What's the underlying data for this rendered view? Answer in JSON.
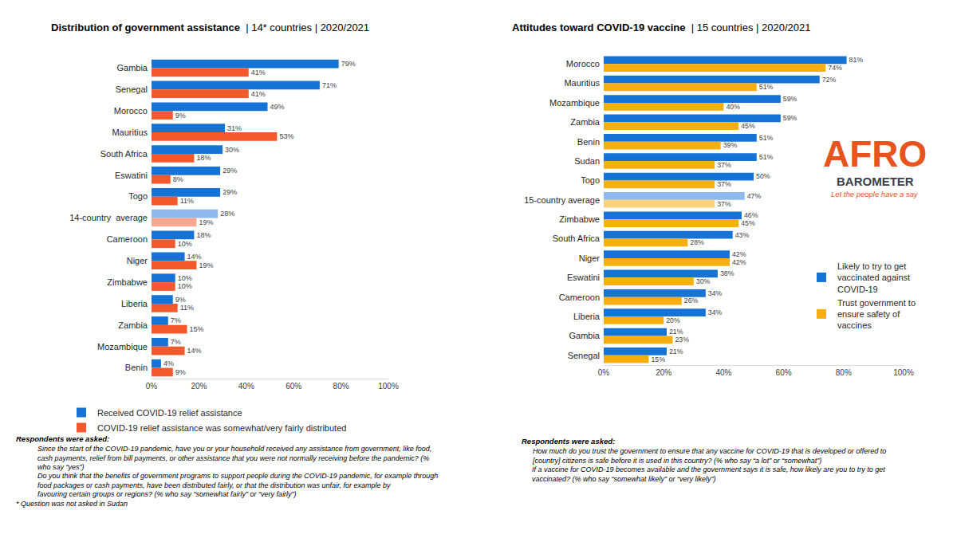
{
  "chart_data": [
    {
      "type": "bar",
      "title": "Distribution of government assistance",
      "subtitle": "| 14* countries | 2020/2021",
      "orientation": "horizontal",
      "categories": [
        "Gambia",
        "Senegal",
        "Morocco",
        "Mauritius",
        "South Africa",
        "Eswatini",
        "Togo",
        "14-country  average",
        "Cameroon",
        "Niger",
        "Zimbabwe",
        "Liberia",
        "Zambia",
        "Mozambique",
        "Benin"
      ],
      "series": [
        {
          "name": "Received COVID-19 relief assistance",
          "colors": [
            "#1573D6",
            "#1573D6",
            "#1573D6",
            "#1573D6",
            "#1573D6",
            "#1573D6",
            "#1573D6",
            "#8DB9EC",
            "#1573D6",
            "#1573D6",
            "#1573D6",
            "#1573D6",
            "#1573D6",
            "#1573D6",
            "#1573D6"
          ],
          "values": [
            79,
            71,
            49,
            31,
            30,
            29,
            29,
            28,
            18,
            14,
            10,
            9,
            7,
            7,
            4
          ],
          "value_labels": [
            "79%",
            "71%",
            "49%",
            "31%",
            "30%",
            "29%",
            "29%",
            "28%",
            "18%",
            "14%",
            "10%",
            "9%",
            "7%",
            "7%",
            "4%"
          ]
        },
        {
          "name": "COVID-19 relief assistance was somewhat/very fairly distributed",
          "colors": [
            "#F25A2E",
            "#F25A2E",
            "#F25A2E",
            "#F25A2E",
            "#F25A2E",
            "#F25A2E",
            "#F25A2E",
            "#F7A68F",
            "#F25A2E",
            "#F25A2E",
            "#F25A2E",
            "#F25A2E",
            "#F25A2E",
            "#F25A2E",
            "#F25A2E"
          ],
          "values": [
            41,
            41,
            9,
            53,
            18,
            8,
            11,
            19,
            10,
            19,
            10,
            11,
            15,
            14,
            9
          ],
          "value_labels": [
            "41%",
            "41%",
            "9%",
            "53%",
            "18%",
            "8%",
            "11%",
            "19%",
            "10%",
            "19%",
            "10%",
            "11%",
            "15%",
            "14%",
            "9%"
          ]
        }
      ],
      "xlim": [
        0,
        100
      ],
      "xticks": [
        {
          "value": 0,
          "label": "0%"
        },
        {
          "value": 20,
          "label": "20%"
        },
        {
          "value": 40,
          "label": "40%"
        },
        {
          "value": 60,
          "label": "60%"
        },
        {
          "value": 80,
          "label": "80%"
        },
        {
          "value": 100,
          "label": "100%"
        }
      ],
      "grid": false,
      "data_labels": true,
      "legend": "bottom",
      "annotations": [
        "Respondents were asked:",
        "Since the start of the COVID-19 pandemic, have you or your household received any assistance from government, like food, cash payments, relief from bill payments, or other assistance that you were not normally receiving before the pandemic? (% who say “yes”)",
        "Do you think that the benefits of government programs to support people during the COVID-19 pandemic, for example through food packages or cash payments, have been distributed fairly, or that the distribution was unfair, for example by favouring certain groups or regions? (% who say “somewhat fairly” or “very fairly”)",
        "* Question was not asked in Sudan"
      ]
    },
    {
      "type": "bar",
      "title": "Attitudes toward COVID-19 vaccine",
      "subtitle": "| 15 countries | 2020/2021",
      "orientation": "horizontal",
      "categories": [
        "Morocco",
        "Mauritius",
        "Mozambique",
        "Zambia",
        "Benin",
        "Sudan",
        "Togo",
        "15-country average",
        "Zimbabwe",
        "South Africa",
        "Niger",
        "Eswatini",
        "Cameroon",
        "Liberia",
        "Gambia",
        "Senegal"
      ],
      "series": [
        {
          "name": "Likely to try to get vaccinated against COVID-19",
          "colors": [
            "#1573D6",
            "#1573D6",
            "#1573D6",
            "#1573D6",
            "#1573D6",
            "#1573D6",
            "#1573D6",
            "#8DB9EC",
            "#1573D6",
            "#1573D6",
            "#1573D6",
            "#1573D6",
            "#1573D6",
            "#1573D6",
            "#1573D6",
            "#1573D6"
          ],
          "values": [
            81,
            72,
            59,
            59,
            51,
            51,
            50,
            47,
            46,
            43,
            42,
            38,
            34,
            34,
            21,
            21
          ],
          "value_labels": [
            "81%",
            "72%",
            "59%",
            "59%",
            "51%",
            "51%",
            "50%",
            "47%",
            "46%",
            "43%",
            "42%",
            "38%",
            "34%",
            "34%",
            "21%",
            "21%"
          ]
        },
        {
          "name": "Trust government to ensure safety of vaccines",
          "colors": [
            "#F7AE0F",
            "#F7AE0F",
            "#F7AE0F",
            "#F7AE0F",
            "#F7AE0F",
            "#F7AE0F",
            "#F7AE0F",
            "#FBD27C",
            "#F7AE0F",
            "#F7AE0F",
            "#F7AE0F",
            "#F7AE0F",
            "#F7AE0F",
            "#F7AE0F",
            "#F7AE0F",
            "#F7AE0F"
          ],
          "values": [
            74,
            51,
            40,
            45,
            39,
            37,
            37,
            37,
            45,
            28,
            42,
            30,
            26,
            20,
            23,
            15
          ],
          "value_labels": [
            "74%",
            "51%",
            "40%",
            "45%",
            "39%",
            "37%",
            "37%",
            "37%",
            "45%",
            "28%",
            "42%",
            "30%",
            "26%",
            "20%",
            "23%",
            "15%"
          ]
        }
      ],
      "xlim": [
        0,
        100
      ],
      "xticks": [
        {
          "value": 0,
          "label": "0%"
        },
        {
          "value": 20,
          "label": "20%"
        },
        {
          "value": 40,
          "label": "40%"
        },
        {
          "value": 60,
          "label": "60%"
        },
        {
          "value": 80,
          "label": "80%"
        },
        {
          "value": 100,
          "label": "100%"
        }
      ],
      "grid": false,
      "data_labels": true,
      "legend": "right",
      "annotations": [
        "Respondents were asked:",
        "How much do you trust the government to ensure that any vaccine for COVID-19 that is developed or offered to [country] citizens is safe before it is used in this country? (% who say “a lot” or “somewhat”)",
        "If a vaccine for COVID-19 becomes available and the government says it is safe, how likely are you to try to get vaccinated? (% who say “somewhat likely” or “very likely”)"
      ]
    }
  ],
  "logo": {
    "text": "AFRO",
    "subtext": "BAROMETER",
    "tagline": "Let the people have a say"
  }
}
